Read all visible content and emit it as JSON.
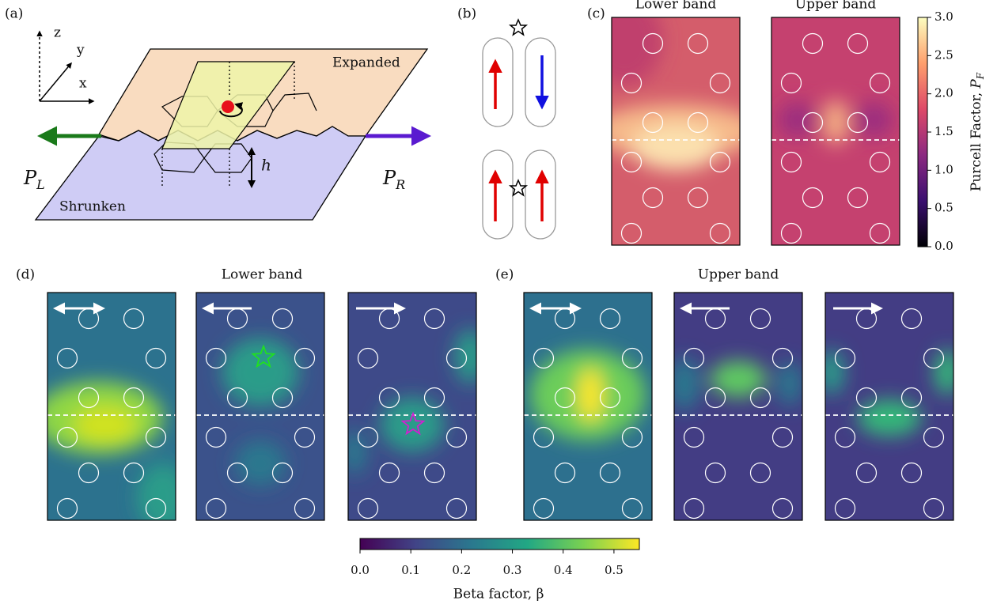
{
  "panel_labels": [
    "(a)",
    "(b)",
    "(c)",
    "(d)",
    "(e)"
  ],
  "panel_a": {
    "axes": [
      "z",
      "y",
      "x"
    ],
    "expanded": "Expanded",
    "shrunken": "Shrunken",
    "p_left": {
      "symbol": "P",
      "subscript": "L"
    },
    "p_right": {
      "symbol": "P",
      "subscript": "R"
    },
    "height": "h"
  },
  "panel_c": {
    "titles": [
      "Lower band",
      "Upper band"
    ],
    "colorbar": {
      "text": "Purcell Factor,",
      "symbol": "P",
      "subscript": "F",
      "lim": [
        0,
        3
      ],
      "ticks": [
        {
          "value": 0,
          "label": "0.0"
        },
        {
          "value": 0.5,
          "label": "0.5"
        },
        {
          "value": 1,
          "label": "1.0"
        },
        {
          "value": 1.5,
          "label": "1.5"
        },
        {
          "value": 2,
          "label": "2.0"
        },
        {
          "value": 2.5,
          "label": "2.5"
        },
        {
          "value": 3,
          "label": "3.0"
        }
      ]
    }
  },
  "panel_d": {
    "title": "Lower band"
  },
  "panel_e": {
    "title": "Upper band"
  },
  "beta_colorbar": {
    "label": "Beta factor, β",
    "lim": [
      0,
      0.55
    ],
    "ticks": [
      {
        "value": 0,
        "label": "0.0"
      },
      {
        "value": 0.1,
        "label": "0.1"
      },
      {
        "value": 0.2,
        "label": "0.2"
      },
      {
        "value": 0.3,
        "label": "0.3"
      },
      {
        "value": 0.4,
        "label": "0.4"
      },
      {
        "value": 0.5,
        "label": "0.5"
      }
    ]
  }
}
